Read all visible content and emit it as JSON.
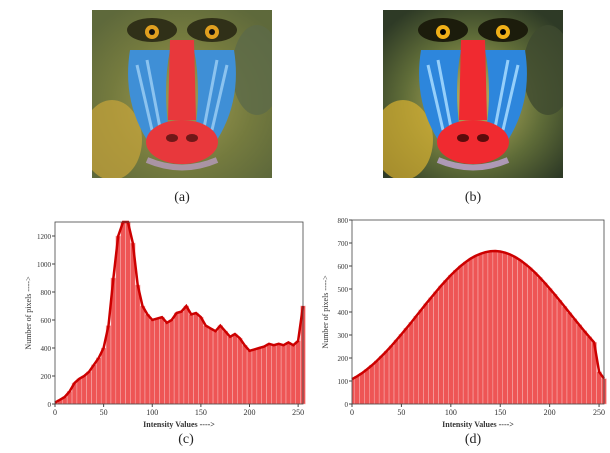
{
  "panels": {
    "a": {
      "caption": "(a)",
      "subject": "mandrill-face-original"
    },
    "b": {
      "caption": "(b)",
      "subject": "mandrill-face-equalized"
    },
    "c": {
      "caption": "(c)"
    },
    "d": {
      "caption": "(d)"
    }
  },
  "colors": {
    "bar_fill": "#ee5555",
    "bar_edge": "#cc1111",
    "outline": "#cc0000",
    "muzzle_red": "#e8383c",
    "cheek_blue": "#3f8fd6",
    "fur": "#8a8a3a"
  },
  "chart_data": [
    {
      "type": "bar",
      "panel": "c",
      "xlabel": "Intensity Values ---->",
      "ylabel": "Number of pixels ---->",
      "xlim": [
        0,
        255
      ],
      "ylim": [
        0,
        1300
      ],
      "xticks": [
        0,
        50,
        100,
        150,
        200,
        250
      ],
      "ytick_labels": [
        "0",
        "200",
        "400",
        "600",
        "800",
        "1000",
        "1200"
      ],
      "grid": false,
      "x": [
        0,
        5,
        10,
        15,
        20,
        25,
        30,
        35,
        40,
        45,
        50,
        55,
        60,
        65,
        70,
        75,
        80,
        85,
        90,
        95,
        100,
        105,
        110,
        115,
        120,
        125,
        130,
        135,
        140,
        145,
        150,
        155,
        160,
        165,
        170,
        175,
        180,
        185,
        190,
        195,
        200,
        205,
        210,
        215,
        220,
        225,
        230,
        235,
        240,
        245,
        250,
        255
      ],
      "values": [
        10,
        30,
        50,
        90,
        150,
        180,
        200,
        230,
        280,
        330,
        400,
        560,
        900,
        1200,
        1300,
        1300,
        1150,
        850,
        700,
        640,
        600,
        610,
        620,
        580,
        600,
        650,
        660,
        700,
        640,
        650,
        620,
        560,
        540,
        520,
        560,
        520,
        480,
        500,
        470,
        420,
        380,
        390,
        400,
        410,
        430,
        420,
        430,
        420,
        440,
        420,
        450,
        700
      ]
    },
    {
      "type": "bar",
      "panel": "d",
      "xlabel": "Intensity Values ---->",
      "ylabel": "Number of pixels ---->",
      "xlim": [
        0,
        255
      ],
      "ylim": [
        0,
        800
      ],
      "xticks": [
        0,
        50,
        100,
        150,
        200,
        250
      ],
      "ytick_labels": [
        "0",
        "100",
        "200",
        "300",
        "400",
        "500",
        "600",
        "700",
        "800"
      ],
      "grid": false,
      "x": [
        0,
        5,
        10,
        15,
        20,
        25,
        30,
        35,
        40,
        45,
        50,
        55,
        60,
        65,
        70,
        75,
        80,
        85,
        90,
        95,
        100,
        105,
        110,
        115,
        120,
        125,
        130,
        135,
        140,
        145,
        150,
        155,
        160,
        165,
        170,
        175,
        180,
        185,
        190,
        195,
        200,
        205,
        210,
        215,
        220,
        225,
        230,
        235,
        240,
        245,
        250,
        255
      ],
      "values": [
        108,
        120,
        134,
        150,
        168,
        187,
        208,
        230,
        253,
        278,
        303,
        329,
        355,
        382,
        409,
        436,
        462,
        488,
        513,
        537,
        560,
        581,
        600,
        617,
        632,
        644,
        653,
        660,
        664,
        665,
        663,
        658,
        650,
        639,
        626,
        610,
        592,
        572,
        550,
        527,
        502,
        477,
        451,
        424,
        397,
        370,
        344,
        318,
        292,
        268,
        140,
        110
      ]
    }
  ]
}
